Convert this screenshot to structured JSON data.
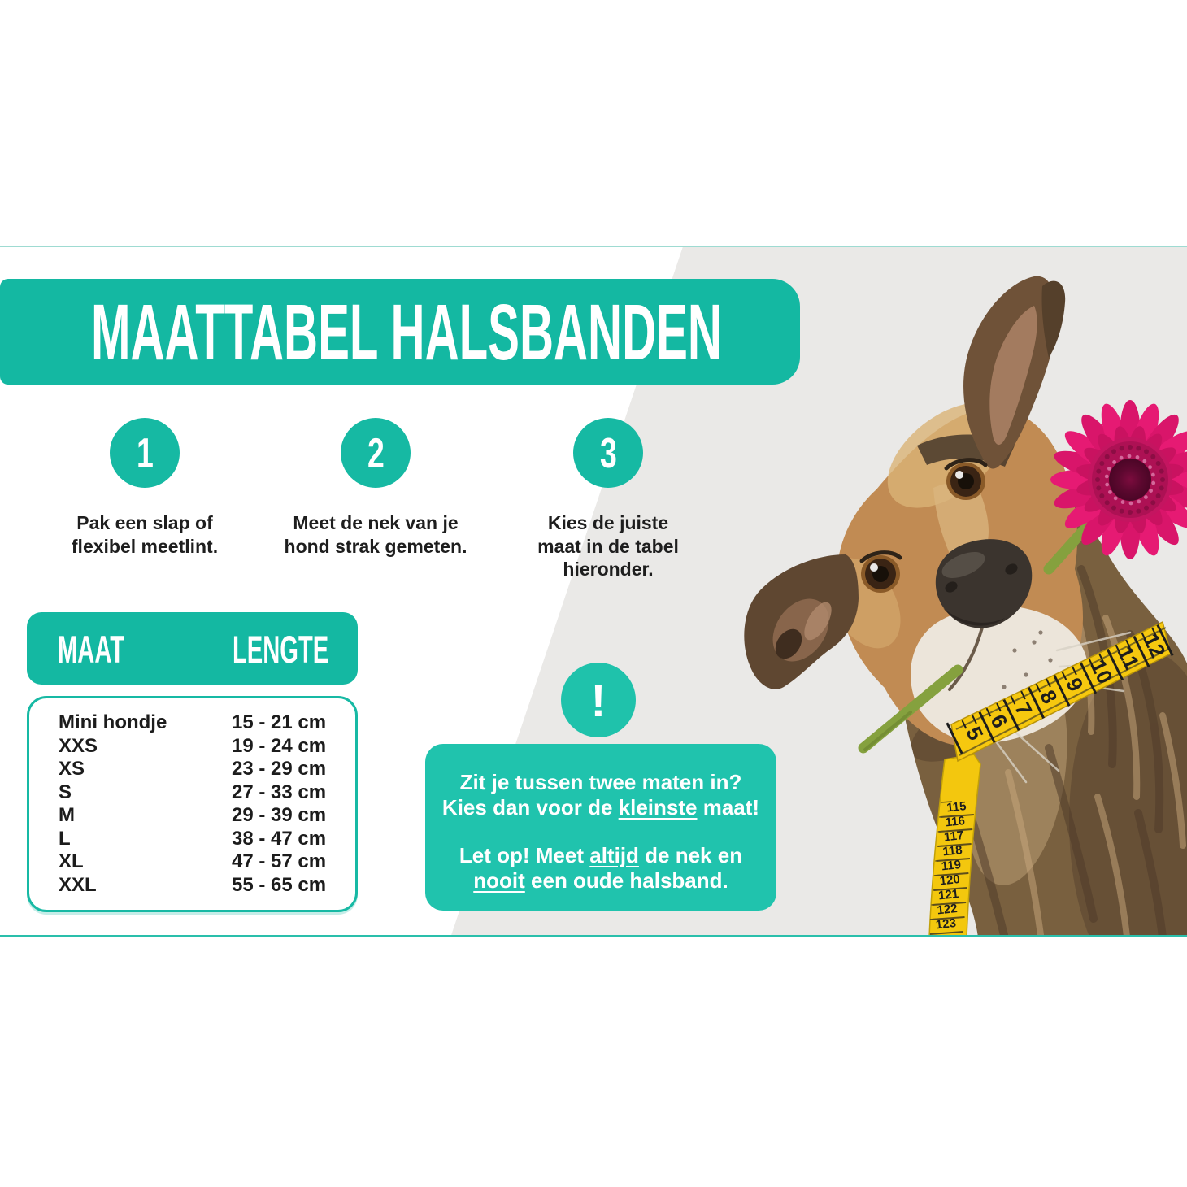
{
  "header": {
    "title": "MAATTABEL HALSBANDEN"
  },
  "colors": {
    "teal_primary": "#14b8a2",
    "teal_light": "#20c3ad",
    "band_top_line": "#9edbd2",
    "band_bottom_line": "#2abfab",
    "photo_background": "#eae9e7",
    "text_dark": "#1e1e1e",
    "tape_yellow": "#f6c80f",
    "flower_pink": "#e41a70"
  },
  "steps": [
    {
      "number": "1",
      "lines": [
        "Pak een slap of",
        "flexibel meetlint."
      ]
    },
    {
      "number": "2",
      "lines": [
        "Meet de nek van je",
        "hond strak gemeten."
      ]
    },
    {
      "number": "3",
      "lines": [
        "Kies de juiste",
        "maat in de tabel",
        "hieronder."
      ]
    }
  ],
  "size_table": {
    "columns": [
      "MAAT",
      "LENGTE"
    ],
    "rows": [
      {
        "maat": "Mini hondje",
        "lengte": "15 - 21 cm"
      },
      {
        "maat": "XXS",
        "lengte": "19 - 24 cm"
      },
      {
        "maat": "XS",
        "lengte": "23 - 29 cm"
      },
      {
        "maat": "S",
        "lengte": "27 - 33 cm"
      },
      {
        "maat": "M",
        "lengte": "29 - 39 cm"
      },
      {
        "maat": "L",
        "lengte": "38 - 47 cm"
      },
      {
        "maat": "XL",
        "lengte": "47 - 57 cm"
      },
      {
        "maat": "XXL",
        "lengte": "55 - 65 cm"
      }
    ]
  },
  "warning": {
    "icon": "!",
    "lines": [
      [
        {
          "t": "Zit je tussen twee maten in?"
        }
      ],
      [
        {
          "t": "Kies dan voor de "
        },
        {
          "t": "kleinste",
          "u": true
        },
        {
          "t": " maat!"
        }
      ],
      [],
      [
        {
          "t": "Let op! Meet "
        },
        {
          "t": "altijd",
          "u": true
        },
        {
          "t": " de nek en"
        }
      ],
      [
        {
          "t": "nooit",
          "u": true
        },
        {
          "t": " een oude halsband."
        }
      ]
    ]
  },
  "illustration": {
    "description": "Hond met roze gerbera in de bek en geel meetlint om de nek",
    "neck_tape_numbers": [
      "5",
      "6",
      "7",
      "8",
      "9",
      "10",
      "11",
      "12"
    ],
    "hanging_tape_numbers": [
      "115",
      "116",
      "117",
      "118",
      "119",
      "120",
      "121",
      "122",
      "123"
    ]
  }
}
